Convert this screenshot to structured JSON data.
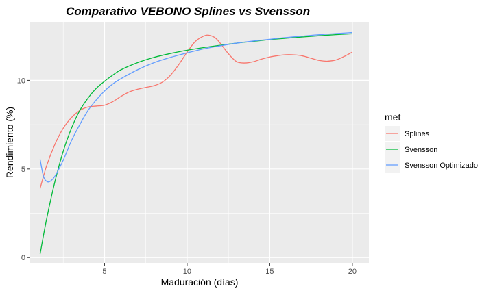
{
  "chart_data": {
    "type": "line",
    "title": "Comparativo VEBONO Splines vs Svensson",
    "xlabel": "Maduración (días)",
    "ylabel": "Rendimiento (%)",
    "xlim": [
      0.5,
      21
    ],
    "ylim": [
      -0.3,
      13.3
    ],
    "x_ticks": [
      5,
      10,
      15,
      20
    ],
    "x_tick_labels": [
      "5",
      "10",
      "15",
      "20"
    ],
    "y_ticks": [
      0,
      5,
      10
    ],
    "y_tick_labels": [
      "0",
      "5",
      "10"
    ],
    "grid": true,
    "legend": {
      "title": "met",
      "position": "right",
      "entries": [
        "Splines",
        "Svensson",
        "Svensson Optimizado"
      ]
    },
    "series": [
      {
        "name": "Splines",
        "color": "#F8766D",
        "x": [
          1.1,
          1.5,
          2,
          2.5,
          3,
          3.5,
          4,
          4.5,
          5,
          5.5,
          6,
          6.5,
          7,
          7.5,
          8,
          8.5,
          9,
          9.5,
          10,
          10.5,
          11,
          11.3,
          11.7,
          12,
          12.5,
          13,
          13.5,
          14,
          14.5,
          15,
          15.5,
          16,
          16.5,
          17,
          17.5,
          18,
          18.5,
          19,
          19.5,
          20
        ],
        "y": [
          3.9,
          5.2,
          6.4,
          7.3,
          7.9,
          8.3,
          8.5,
          8.55,
          8.6,
          8.8,
          9.1,
          9.35,
          9.5,
          9.6,
          9.7,
          9.9,
          10.3,
          10.9,
          11.6,
          12.2,
          12.5,
          12.55,
          12.4,
          12.1,
          11.5,
          11.05,
          10.98,
          11.05,
          11.2,
          11.32,
          11.4,
          11.45,
          11.44,
          11.38,
          11.25,
          11.12,
          11.08,
          11.15,
          11.35,
          11.6
        ]
      },
      {
        "name": "Svensson",
        "color": "#00BA38",
        "x": [
          1.1,
          1.5,
          2,
          2.5,
          3,
          3.5,
          4,
          4.5,
          5,
          5.5,
          6,
          7,
          8,
          9,
          10,
          11,
          12,
          13,
          14,
          15,
          16,
          17,
          18,
          19,
          20
        ],
        "y": [
          0.2,
          2.2,
          4.3,
          6.0,
          7.3,
          8.3,
          9.0,
          9.55,
          9.95,
          10.3,
          10.6,
          11.0,
          11.3,
          11.52,
          11.7,
          11.85,
          11.98,
          12.1,
          12.2,
          12.3,
          12.38,
          12.45,
          12.52,
          12.58,
          12.63
        ]
      },
      {
        "name": "Svensson Optimizado",
        "color": "#619CFF",
        "x": [
          1.1,
          1.3,
          1.5,
          1.7,
          2,
          2.5,
          3,
          3.5,
          4,
          4.5,
          5,
          5.5,
          6,
          7,
          8,
          9,
          10,
          11,
          12,
          13,
          14,
          15,
          16,
          17,
          18,
          19,
          20
        ],
        "y": [
          5.55,
          4.6,
          4.3,
          4.3,
          4.6,
          5.5,
          6.6,
          7.5,
          8.3,
          8.9,
          9.4,
          9.8,
          10.1,
          10.6,
          11.0,
          11.3,
          11.55,
          11.78,
          11.95,
          12.1,
          12.22,
          12.32,
          12.42,
          12.5,
          12.58,
          12.64,
          12.7
        ]
      }
    ]
  }
}
